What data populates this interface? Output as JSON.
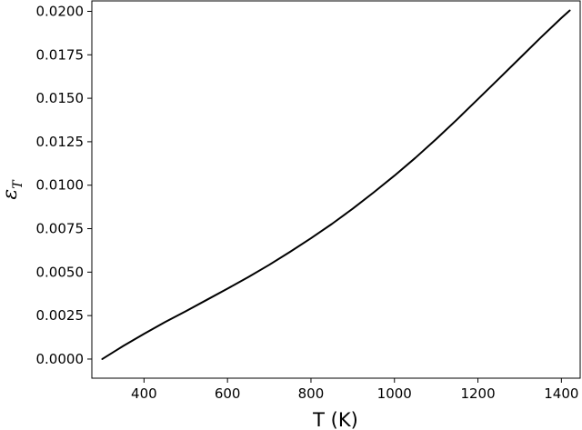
{
  "chart_data": {
    "type": "line",
    "xlabel": "T (K)",
    "ylabel_main": "ε",
    "ylabel_sub": "T",
    "xlim": [
      275,
      1445
    ],
    "ylim": [
      -0.0011,
      0.0206
    ],
    "xticks": [
      400,
      600,
      800,
      1000,
      1200,
      1400
    ],
    "xtick_labels": [
      "400",
      "600",
      "800",
      "1000",
      "1200",
      "1400"
    ],
    "yticks": [
      0.0,
      0.0025,
      0.005,
      0.0075,
      0.01,
      0.0125,
      0.015,
      0.0175,
      0.02
    ],
    "ytick_labels": [
      "0.0000",
      "0.0025",
      "0.0050",
      "0.0075",
      "0.0100",
      "0.0125",
      "0.0150",
      "0.0175",
      "0.0200"
    ],
    "grid": false,
    "line_color": "#000000",
    "series": [
      {
        "x": [
          300,
          350,
          400,
          450,
          500,
          550,
          600,
          650,
          700,
          750,
          800,
          850,
          900,
          950,
          1000,
          1050,
          1100,
          1150,
          1200,
          1250,
          1300,
          1350,
          1400,
          1420
        ],
        "y": [
          0.0,
          0.00075,
          0.00145,
          0.00212,
          0.00275,
          0.0034,
          0.00405,
          0.00472,
          0.00542,
          0.00617,
          0.00695,
          0.00777,
          0.00865,
          0.00958,
          0.01055,
          0.01157,
          0.01265,
          0.01378,
          0.01495,
          0.01612,
          0.0173,
          0.01848,
          0.01962,
          0.02005
        ]
      }
    ]
  }
}
